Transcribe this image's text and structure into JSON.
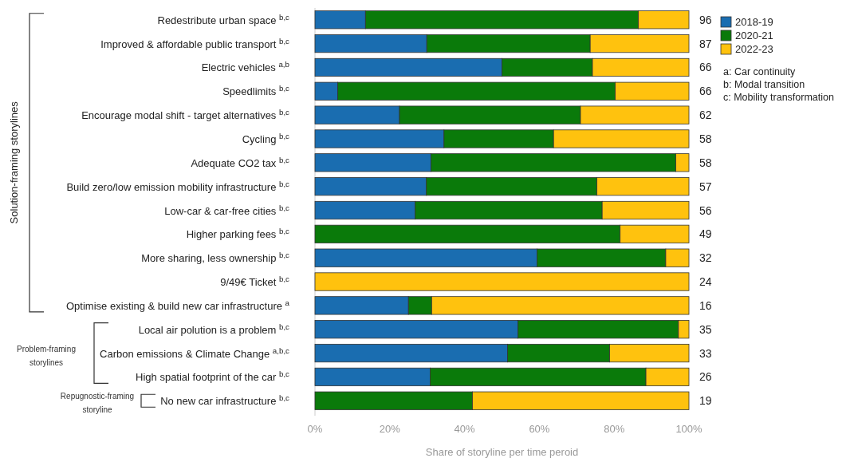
{
  "chart_data": {
    "type": "bar",
    "orientation": "horizontal",
    "stacked": true,
    "categories": [
      "Redestribute urban space $^{b,c}$",
      "Improved & affordable public transport $^{b,c}$",
      "Electric vehicles $^{a,b}$",
      "Speedlimits $^{b,c}$",
      "Encourage modal shift - target alternatives $^{b,c}$",
      "Cycling $^{b,c}$",
      "Adequate CO2 tax $^{b,c}$",
      "Build zero/low emission mobility infrastructure $^{b,c}$",
      "Low-car & car-free cities $^{b,c}$",
      "Higher parking fees $^{b,c}$",
      "More sharing, less ownership $^{b,c}$",
      "9/49€ Ticket $^{b,c}$",
      "Optimise existing & build new car infrastructure $^{a}$",
      "Local air polution is a problem $^{b,c}$",
      "Carbon emissions & Climate Change $^{a,b,c}$",
      "High spatial footprint of the car $^{b,c}$",
      "No new car infrastructure $^{b,c}$"
    ],
    "series": [
      {
        "name": "2018-19",
        "color": "#1a6db0",
        "values": [
          13.5,
          29.9,
          50.0,
          6.1,
          22.6,
          34.5,
          31.0,
          29.8,
          26.8,
          0,
          59.4,
          0,
          25.0,
          54.3,
          51.5,
          30.8,
          0
        ]
      },
      {
        "name": "2020-21",
        "color": "#0a7a0a",
        "values": [
          73.0,
          43.7,
          24.2,
          74.2,
          48.4,
          29.3,
          65.5,
          45.6,
          50.0,
          81.6,
          34.4,
          0,
          6.2,
          42.9,
          27.3,
          57.7,
          42.1
        ]
      },
      {
        "name": "2022-23",
        "color": "#ffc20e",
        "values": [
          13.5,
          26.4,
          25.8,
          19.7,
          29.0,
          36.2,
          3.5,
          24.6,
          23.2,
          18.4,
          6.2,
          100,
          68.8,
          2.8,
          21.2,
          11.5,
          57.9
        ]
      }
    ],
    "xlim": [
      0,
      100
    ],
    "xticks": [
      {
        "value": 0,
        "label": "0%"
      },
      {
        "value": 20,
        "label": "20%"
      },
      {
        "value": 40,
        "label": "40%"
      },
      {
        "value": 60,
        "label": "60%"
      },
      {
        "value": 80,
        "label": "80%"
      },
      {
        "value": 100,
        "label": "100%"
      }
    ],
    "xlabel": "Share of storyline per time peroid",
    "legend": "right",
    "annotations": [
      "Solution-framing storylines",
      "Problem-framing storylines",
      "Repugnostic-framing storyline",
      "a: Car continuity",
      "b: Modal transition",
      "c: Mobility transformation",
      "96",
      "87",
      "66",
      "66",
      "62",
      "58",
      "58",
      "57",
      "56",
      "49",
      "32",
      "24",
      "16",
      "35",
      "33",
      "26",
      "19"
    ]
  }
}
